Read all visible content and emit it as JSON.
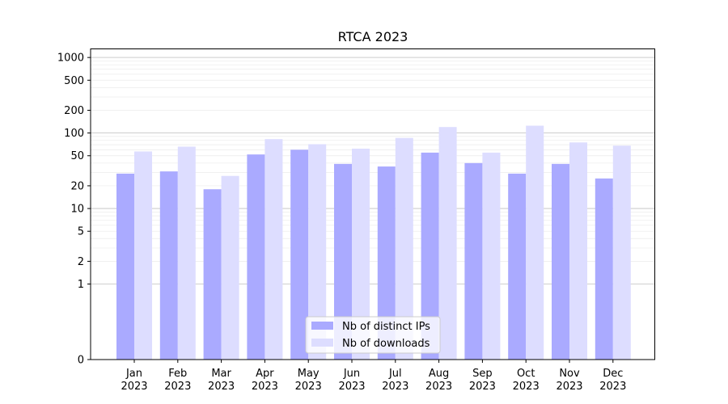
{
  "chart_data": {
    "type": "bar",
    "title": "RTCA 2023",
    "xlabel": "",
    "ylabel": "",
    "yscale": "symlog",
    "ylim": [
      0,
      1300
    ],
    "yticks": [
      0,
      1,
      2,
      5,
      10,
      20,
      50,
      100,
      200,
      500,
      1000
    ],
    "categories": [
      "Jan\n2023",
      "Feb\n2023",
      "Mar\n2023",
      "Apr\n2023",
      "May\n2023",
      "Jun\n2023",
      "Jul\n2023",
      "Aug\n2023",
      "Sep\n2023",
      "Oct\n2023",
      "Nov\n2023",
      "Dec\n2023"
    ],
    "series": [
      {
        "name": "Nb of distinct IPs",
        "color": "#aaaaff",
        "values": [
          29,
          31,
          18,
          52,
          60,
          39,
          36,
          55,
          40,
          29,
          39,
          25
        ]
      },
      {
        "name": "Nb of downloads",
        "color": "#ddddff",
        "values": [
          57,
          66,
          27,
          83,
          71,
          62,
          86,
          120,
          55,
          125,
          75,
          68
        ]
      }
    ],
    "grid": true,
    "legend_position": "bottom-center"
  }
}
